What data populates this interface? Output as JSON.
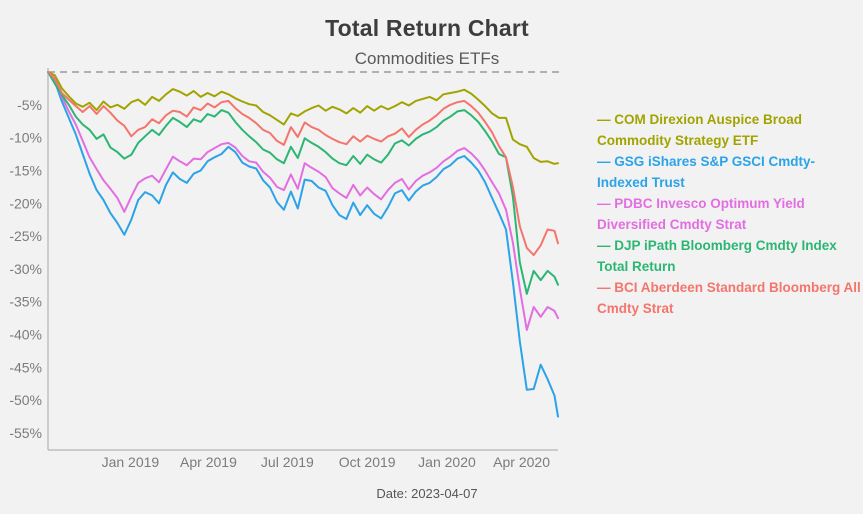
{
  "page": {
    "background_color": "#f2f2f2"
  },
  "header": {
    "title": "Total Return Chart",
    "subtitle": "Commodities ETFs"
  },
  "footer": {
    "date_label": "Date: 2023-04-07"
  },
  "legend_marker": "—",
  "chart_data": {
    "type": "line",
    "title": "Total Return Chart",
    "subtitle": "Commodities ETFs",
    "y_unit": "%",
    "ylim": [
      -57.5,
      0.5
    ],
    "grid": false,
    "legend_position": "right",
    "zero_line": {
      "value": 0,
      "style": "dashed",
      "color": "#999999"
    },
    "axis_color": "#b4b4b4",
    "tick_label_color": "#7b7b7b",
    "yticks": [
      {
        "value": -5,
        "label": "-5%"
      },
      {
        "value": -10,
        "label": "-10%"
      },
      {
        "value": -15,
        "label": "-15%"
      },
      {
        "value": -20,
        "label": "-20%"
      },
      {
        "value": -25,
        "label": "-25%"
      },
      {
        "value": -30,
        "label": "-30%"
      },
      {
        "value": -35,
        "label": "-35%"
      },
      {
        "value": -40,
        "label": "-40%"
      },
      {
        "value": -45,
        "label": "-45%"
      },
      {
        "value": -50,
        "label": "-50%"
      },
      {
        "value": -55,
        "label": "-55%"
      }
    ],
    "x_range": [
      0,
      588
    ],
    "xticks": [
      {
        "x": 95,
        "label": "Jan 2019"
      },
      {
        "x": 185,
        "label": "Apr 2019"
      },
      {
        "x": 276,
        "label": "Jul 2019"
      },
      {
        "x": 368,
        "label": "Oct 2019"
      },
      {
        "x": 460,
        "label": "Jan 2020"
      },
      {
        "x": 546,
        "label": "Apr 2020"
      }
    ],
    "x": [
      0,
      8,
      16,
      24,
      32,
      40,
      48,
      56,
      64,
      72,
      80,
      88,
      96,
      104,
      112,
      120,
      128,
      136,
      144,
      152,
      160,
      168,
      176,
      184,
      192,
      200,
      208,
      216,
      224,
      232,
      240,
      248,
      256,
      264,
      272,
      280,
      288,
      296,
      304,
      312,
      320,
      328,
      336,
      344,
      352,
      360,
      368,
      376,
      384,
      392,
      400,
      408,
      416,
      424,
      432,
      440,
      448,
      456,
      464,
      472,
      480,
      488,
      496,
      504,
      512,
      520,
      528,
      536,
      544,
      552,
      560,
      568,
      576,
      584,
      588
    ],
    "series": [
      {
        "ticker": "COM",
        "name": "COM Direxion Auspice Broad Commodity Strategy ETF",
        "color": "#a1a400",
        "values": [
          0,
          -0.5,
          -2.5,
          -3.7,
          -4.8,
          -5.3,
          -4.7,
          -5.8,
          -4.5,
          -5.4,
          -5.0,
          -5.6,
          -4.6,
          -4.2,
          -5.0,
          -3.8,
          -4.4,
          -3.4,
          -2.6,
          -3.0,
          -3.6,
          -2.9,
          -3.8,
          -3.2,
          -3.7,
          -3.0,
          -3.4,
          -4.0,
          -4.5,
          -4.9,
          -5.1,
          -6.1,
          -6.6,
          -7.3,
          -8.0,
          -6.3,
          -6.7,
          -6.0,
          -5.5,
          -5.1,
          -5.9,
          -5.3,
          -5.7,
          -6.3,
          -5.5,
          -6.2,
          -5.2,
          -5.9,
          -5.2,
          -5.7,
          -5.2,
          -4.6,
          -5.1,
          -4.4,
          -4.1,
          -3.8,
          -4.3,
          -3.4,
          -3.2,
          -3.0,
          -2.7,
          -3.3,
          -4.2,
          -5.2,
          -6.3,
          -7.0,
          -7.0,
          -10.3,
          -11.0,
          -11.4,
          -13.1,
          -13.7,
          -13.6,
          -14.0,
          -13.9
        ]
      },
      {
        "ticker": "GSG",
        "name": "GSG iShares S&P GSCI Cmdty-Indexed Trust",
        "color": "#2aa3e8",
        "values": [
          0,
          -1.5,
          -4.5,
          -7.0,
          -9.5,
          -12.5,
          -15.5,
          -18.0,
          -19.5,
          -21.5,
          -23.0,
          -24.8,
          -22.5,
          -19.5,
          -18.3,
          -18.8,
          -20.0,
          -17.2,
          -15.3,
          -16.3,
          -16.9,
          -15.5,
          -15.0,
          -13.6,
          -13.0,
          -12.5,
          -11.4,
          -12.2,
          -13.8,
          -14.4,
          -14.7,
          -16.5,
          -17.6,
          -19.8,
          -21.0,
          -18.2,
          -20.8,
          -16.4,
          -16.6,
          -17.6,
          -18.1,
          -20.3,
          -21.8,
          -22.4,
          -19.9,
          -21.8,
          -20.3,
          -21.6,
          -22.3,
          -20.6,
          -18.5,
          -18.0,
          -19.6,
          -18.2,
          -17.3,
          -16.9,
          -16.0,
          -14.8,
          -14.2,
          -13.2,
          -12.8,
          -13.8,
          -15.0,
          -16.8,
          -19.2,
          -21.5,
          -24.0,
          -32.0,
          -41.0,
          -48.4,
          -48.3,
          -44.6,
          -46.8,
          -49.3,
          -52.5
        ]
      },
      {
        "ticker": "PDBC",
        "name": "PDBC Invesco Optimum Yield Diversified Cmdty Strat",
        "color": "#e26ee2",
        "values": [
          0,
          -1.2,
          -3.8,
          -6.0,
          -8.0,
          -10.5,
          -13.0,
          -14.8,
          -16.5,
          -17.8,
          -19.2,
          -21.3,
          -19.0,
          -16.9,
          -16.2,
          -15.8,
          -16.8,
          -14.8,
          -12.9,
          -13.6,
          -14.2,
          -13.2,
          -13.3,
          -12.2,
          -11.6,
          -11.0,
          -10.8,
          -11.5,
          -12.8,
          -13.6,
          -13.8,
          -15.2,
          -16.1,
          -17.5,
          -18.0,
          -15.6,
          -17.8,
          -13.9,
          -14.6,
          -15.2,
          -16.0,
          -17.7,
          -18.5,
          -19.2,
          -17.2,
          -18.8,
          -17.6,
          -18.6,
          -19.4,
          -18.0,
          -16.9,
          -16.3,
          -17.9,
          -16.6,
          -15.8,
          -15.3,
          -14.6,
          -13.6,
          -12.9,
          -12.0,
          -11.6,
          -12.4,
          -13.5,
          -15.0,
          -16.8,
          -18.5,
          -21.0,
          -26.0,
          -33.0,
          -39.3,
          -35.8,
          -37.3,
          -35.8,
          -36.4,
          -37.5
        ]
      },
      {
        "ticker": "DJP",
        "name": "DJP iPath Bloomberg Cmdty Index Total Return",
        "color": "#2bb673",
        "values": [
          0,
          -1.8,
          -3.5,
          -5.0,
          -6.8,
          -8.0,
          -8.8,
          -10.2,
          -9.5,
          -11.5,
          -12.2,
          -13.2,
          -12.6,
          -10.8,
          -9.8,
          -8.8,
          -9.6,
          -8.2,
          -7.0,
          -7.6,
          -8.4,
          -7.2,
          -7.6,
          -6.4,
          -6.8,
          -5.8,
          -6.2,
          -7.6,
          -8.8,
          -9.8,
          -10.7,
          -11.8,
          -12.3,
          -13.3,
          -13.9,
          -11.4,
          -13.1,
          -10.1,
          -10.8,
          -11.4,
          -12.2,
          -13.2,
          -13.9,
          -14.2,
          -12.8,
          -14.0,
          -12.6,
          -13.3,
          -13.8,
          -12.6,
          -10.9,
          -10.4,
          -11.2,
          -10.2,
          -9.5,
          -9.1,
          -8.4,
          -7.4,
          -6.8,
          -6.0,
          -5.8,
          -6.6,
          -7.6,
          -9.0,
          -10.6,
          -12.5,
          -13.0,
          -19.0,
          -29.0,
          -33.8,
          -30.3,
          -31.7,
          -30.3,
          -31.2,
          -32.4
        ]
      },
      {
        "ticker": "BCI",
        "name": "BCI Aberdeen Standard Bloomberg All Cmdty Strat",
        "color": "#f4756c",
        "values": [
          0,
          -1.0,
          -3.2,
          -4.2,
          -5.2,
          -6.1,
          -5.2,
          -6.4,
          -5.2,
          -6.2,
          -7.4,
          -8.2,
          -9.8,
          -8.8,
          -8.4,
          -7.2,
          -7.8,
          -6.6,
          -5.9,
          -6.1,
          -6.8,
          -5.4,
          -5.8,
          -4.8,
          -5.4,
          -4.6,
          -4.4,
          -5.5,
          -6.4,
          -7.0,
          -7.8,
          -8.8,
          -9.3,
          -10.5,
          -11.1,
          -8.4,
          -9.9,
          -7.7,
          -8.4,
          -8.8,
          -9.6,
          -10.2,
          -10.7,
          -11.0,
          -9.8,
          -10.6,
          -9.7,
          -10.2,
          -10.6,
          -9.8,
          -9.4,
          -8.6,
          -9.9,
          -8.8,
          -8.0,
          -7.4,
          -6.6,
          -5.6,
          -5.0,
          -4.6,
          -4.4,
          -5.2,
          -6.2,
          -7.6,
          -9.2,
          -11.3,
          -13.0,
          -17.5,
          -23.5,
          -26.8,
          -27.9,
          -26.4,
          -24.0,
          -24.2,
          -26.1
        ]
      }
    ]
  }
}
